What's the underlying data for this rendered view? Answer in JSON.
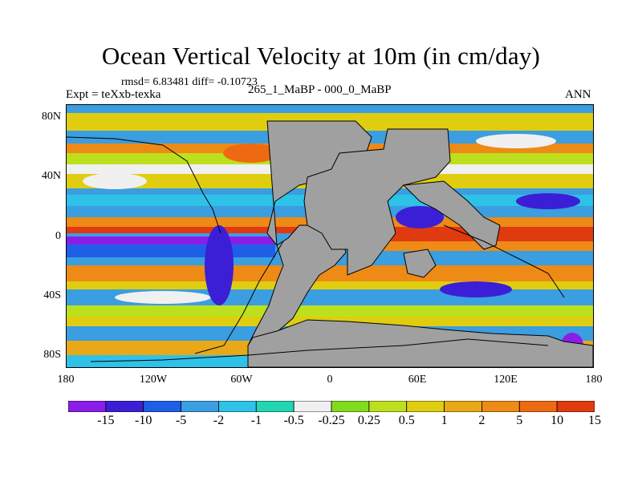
{
  "title": "Ocean Vertical Velocity at 10m (in cm/day)",
  "stats": "rmsd= 6.83481 diff= -0.10723",
  "expt_label": "Expt = teXxb-texka",
  "cases_label": "265_1_MaBP - 000_0_MaBP",
  "season": "ANN",
  "axes": {
    "x_ticks": [
      "180",
      "120W",
      "60W",
      "0",
      "60E",
      "120E",
      "180"
    ],
    "y_ticks": [
      "80N",
      "40N",
      "0",
      "40S",
      "80S"
    ]
  },
  "colorbar": {
    "colors": [
      "#8a1ee8",
      "#3b1fd6",
      "#1f5ee6",
      "#3a9ee0",
      "#2ec2e8",
      "#23d6b0",
      "#f0f0f0",
      "#82dc1e",
      "#bde01e",
      "#e0cd10",
      "#e8a818",
      "#ee8a16",
      "#ee6a12",
      "#e03a10"
    ],
    "labels": [
      "-15",
      "-10",
      "-5",
      "-2",
      "-1",
      "-0.5",
      "-0.25",
      "0.25",
      "0.5",
      "1",
      "2",
      "5",
      "10",
      "15"
    ]
  },
  "land_color": "#a0a0a0"
}
